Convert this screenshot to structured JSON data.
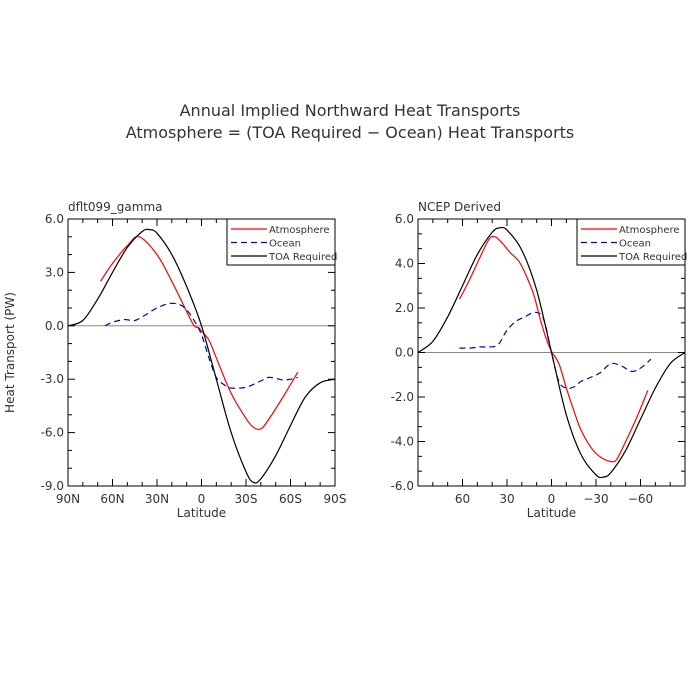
{
  "title": {
    "line1": "Annual Implied Northward Heat Transports",
    "line2": "Atmosphere = (TOA Required − Ocean) Heat Transports"
  },
  "colors": {
    "atmosphere": "#ff0000",
    "ocean": "#0000cc",
    "toa": "#000000",
    "zero_line": "#888888"
  },
  "chart_data": [
    {
      "type": "line",
      "subtitle": "dflt099_gamma",
      "xlabel": "Latitude",
      "ylabel": "Heat Transport (PW)",
      "xlim": [
        90,
        -90
      ],
      "ylim": [
        -9,
        6
      ],
      "xticks": [
        90,
        60,
        30,
        0,
        -30,
        -60,
        -90
      ],
      "xtick_labels": [
        "90N",
        "60N",
        "30N",
        "0",
        "30S",
        "60S",
        "90S"
      ],
      "yticks": [
        6,
        3,
        0,
        -3,
        -6,
        -9
      ],
      "ytick_labels": [
        "6.0",
        "3.0",
        "0.0",
        "-3.0",
        "-6.0",
        "-9.0"
      ],
      "grid": false,
      "zero_line": true,
      "legend": "top-right",
      "series": [
        {
          "name": "Atmosphere",
          "style": "solid",
          "color": "#ff0000",
          "x": [
            68,
            60,
            50,
            42,
            30,
            20,
            10,
            5,
            2,
            0,
            -5,
            -10,
            -20,
            -30,
            -35,
            -40,
            -45,
            -55,
            -65
          ],
          "y": [
            2.5,
            3.5,
            4.5,
            5.0,
            4.0,
            2.5,
            0.8,
            0.0,
            -0.1,
            -0.3,
            -0.8,
            -1.8,
            -3.8,
            -5.2,
            -5.7,
            -5.8,
            -5.3,
            -4.0,
            -2.6
          ]
        },
        {
          "name": "Ocean",
          "style": "dashed",
          "color": "#0000cc",
          "x": [
            65,
            60,
            52,
            45,
            38,
            30,
            22,
            15,
            10,
            5,
            0,
            -5,
            -10,
            -15,
            -20,
            -30,
            -40,
            -45,
            -50,
            -55,
            -60,
            -65
          ],
          "y": [
            0.0,
            0.2,
            0.35,
            0.3,
            0.6,
            1.0,
            1.25,
            1.2,
            0.9,
            0.3,
            -0.5,
            -1.8,
            -2.9,
            -3.3,
            -3.5,
            -3.45,
            -3.1,
            -2.9,
            -2.95,
            -3.05,
            -3.0,
            -2.9
          ]
        },
        {
          "name": "TOA Required",
          "style": "solid",
          "color": "#000000",
          "x": [
            90,
            80,
            70,
            60,
            50,
            40,
            35,
            30,
            20,
            10,
            0,
            -10,
            -20,
            -30,
            -35,
            -40,
            -50,
            -60,
            -70,
            -80,
            -90
          ],
          "y": [
            0.0,
            0.3,
            1.5,
            3.0,
            4.4,
            5.3,
            5.4,
            5.2,
            4.0,
            2.2,
            0.0,
            -3.0,
            -6.0,
            -8.2,
            -8.8,
            -8.6,
            -7.3,
            -5.6,
            -4.0,
            -3.2,
            -3.0
          ]
        }
      ]
    },
    {
      "type": "line",
      "subtitle": "NCEP Derived",
      "xlabel": "Latitude",
      "ylabel": "",
      "xlim": [
        90,
        -90
      ],
      "ylim": [
        -6,
        6
      ],
      "xticks": [
        60,
        30,
        0,
        -30,
        -60
      ],
      "xtick_labels": [
        "60",
        "30",
        "0",
        "−30",
        "−60"
      ],
      "yticks": [
        6,
        4,
        2,
        0,
        -2,
        -4,
        -6
      ],
      "ytick_labels": [
        "6.0",
        "4.0",
        "2.0",
        "0.0",
        "-2.0",
        "-4.0",
        "-6.0"
      ],
      "grid": false,
      "zero_line": true,
      "legend": "top-right",
      "series": [
        {
          "name": "Atmosphere",
          "style": "solid",
          "color": "#ff0000",
          "x": [
            62,
            55,
            48,
            42,
            38,
            33,
            28,
            22,
            18,
            12,
            8,
            4,
            0,
            -5,
            -10,
            -15,
            -20,
            -27,
            -33,
            -40,
            -44,
            -50,
            -57,
            -65
          ],
          "y": [
            2.4,
            3.3,
            4.3,
            5.1,
            5.2,
            4.9,
            4.5,
            4.1,
            3.6,
            2.6,
            1.6,
            0.7,
            0.05,
            -0.5,
            -1.6,
            -2.6,
            -3.5,
            -4.3,
            -4.7,
            -4.9,
            -4.8,
            -4.0,
            -3.0,
            -1.7
          ]
        },
        {
          "name": "Ocean",
          "style": "dashed",
          "color": "#0000cc",
          "x": [
            62,
            55,
            48,
            42,
            36,
            30,
            24,
            18,
            12,
            7,
            4,
            0,
            -5,
            -10,
            -15,
            -20,
            -27,
            -33,
            -40,
            -47,
            -54,
            -60,
            -67
          ],
          "y": [
            0.2,
            0.2,
            0.25,
            0.25,
            0.35,
            1.0,
            1.4,
            1.6,
            1.8,
            1.7,
            1.2,
            0.0,
            -1.3,
            -1.6,
            -1.55,
            -1.3,
            -1.1,
            -0.9,
            -0.5,
            -0.6,
            -0.85,
            -0.7,
            -0.3
          ]
        },
        {
          "name": "TOA Required",
          "style": "solid",
          "color": "#000000",
          "x": [
            90,
            80,
            70,
            60,
            50,
            40,
            35,
            30,
            20,
            10,
            0,
            -10,
            -20,
            -30,
            -35,
            -40,
            -50,
            -60,
            -70,
            -80,
            -90
          ],
          "y": [
            0.0,
            0.5,
            1.6,
            3.0,
            4.4,
            5.4,
            5.6,
            5.5,
            4.6,
            2.8,
            0.0,
            -2.8,
            -4.6,
            -5.5,
            -5.6,
            -5.4,
            -4.4,
            -3.0,
            -1.6,
            -0.5,
            0.0
          ]
        }
      ]
    }
  ]
}
